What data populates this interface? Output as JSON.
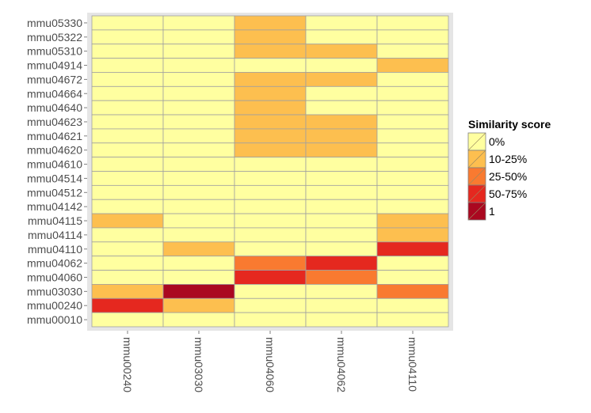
{
  "chart_data": {
    "type": "heatmap",
    "x_categories": [
      "mmu00240",
      "mmu03030",
      "mmu04060",
      "mmu04062",
      "mmu04110"
    ],
    "y_categories": [
      "mmu05330",
      "mmu05322",
      "mmu05310",
      "mmu04914",
      "mmu04672",
      "mmu04664",
      "mmu04640",
      "mmu04623",
      "mmu04621",
      "mmu04620",
      "mmu04610",
      "mmu04514",
      "mmu04512",
      "mmu04142",
      "mmu04115",
      "mmu04114",
      "mmu04110",
      "mmu04062",
      "mmu04060",
      "mmu03030",
      "mmu00240",
      "mmu00010"
    ],
    "values": [
      [
        0,
        0,
        1,
        0,
        0
      ],
      [
        0,
        0,
        1,
        0,
        0
      ],
      [
        0,
        0,
        1,
        1,
        0
      ],
      [
        0,
        0,
        0,
        0,
        1
      ],
      [
        0,
        0,
        1,
        1,
        0
      ],
      [
        0,
        0,
        1,
        0,
        0
      ],
      [
        0,
        0,
        1,
        0,
        0
      ],
      [
        0,
        0,
        1,
        1,
        0
      ],
      [
        0,
        0,
        1,
        1,
        0
      ],
      [
        0,
        0,
        1,
        1,
        0
      ],
      [
        0,
        0,
        0,
        0,
        0
      ],
      [
        0,
        0,
        0,
        0,
        0
      ],
      [
        0,
        0,
        0,
        0,
        0
      ],
      [
        0,
        0,
        0,
        0,
        0
      ],
      [
        1,
        0,
        0,
        0,
        1
      ],
      [
        0,
        0,
        0,
        0,
        1
      ],
      [
        0,
        1,
        0,
        0,
        3
      ],
      [
        0,
        0,
        2,
        3,
        0
      ],
      [
        0,
        0,
        3,
        2,
        0
      ],
      [
        1,
        4,
        0,
        0,
        2
      ],
      [
        3,
        1,
        0,
        0,
        0
      ],
      [
        0,
        0,
        0,
        0,
        0
      ]
    ],
    "legend": {
      "title": "Similarity score",
      "position": "right",
      "levels": [
        {
          "label": "0%",
          "color": "#FFFFA0"
        },
        {
          "label": "10-25%",
          "color": "#FDBF4F"
        },
        {
          "label": "25-50%",
          "color": "#F97A30"
        },
        {
          "label": "50-75%",
          "color": "#E5281F"
        },
        {
          "label": "1",
          "color": "#AA0820"
        }
      ]
    },
    "colors": {
      "panel_background": "#E5E5E5",
      "tile_border": "#A0A0A0",
      "tick_text": "#4D4D4D"
    },
    "grid": true
  }
}
